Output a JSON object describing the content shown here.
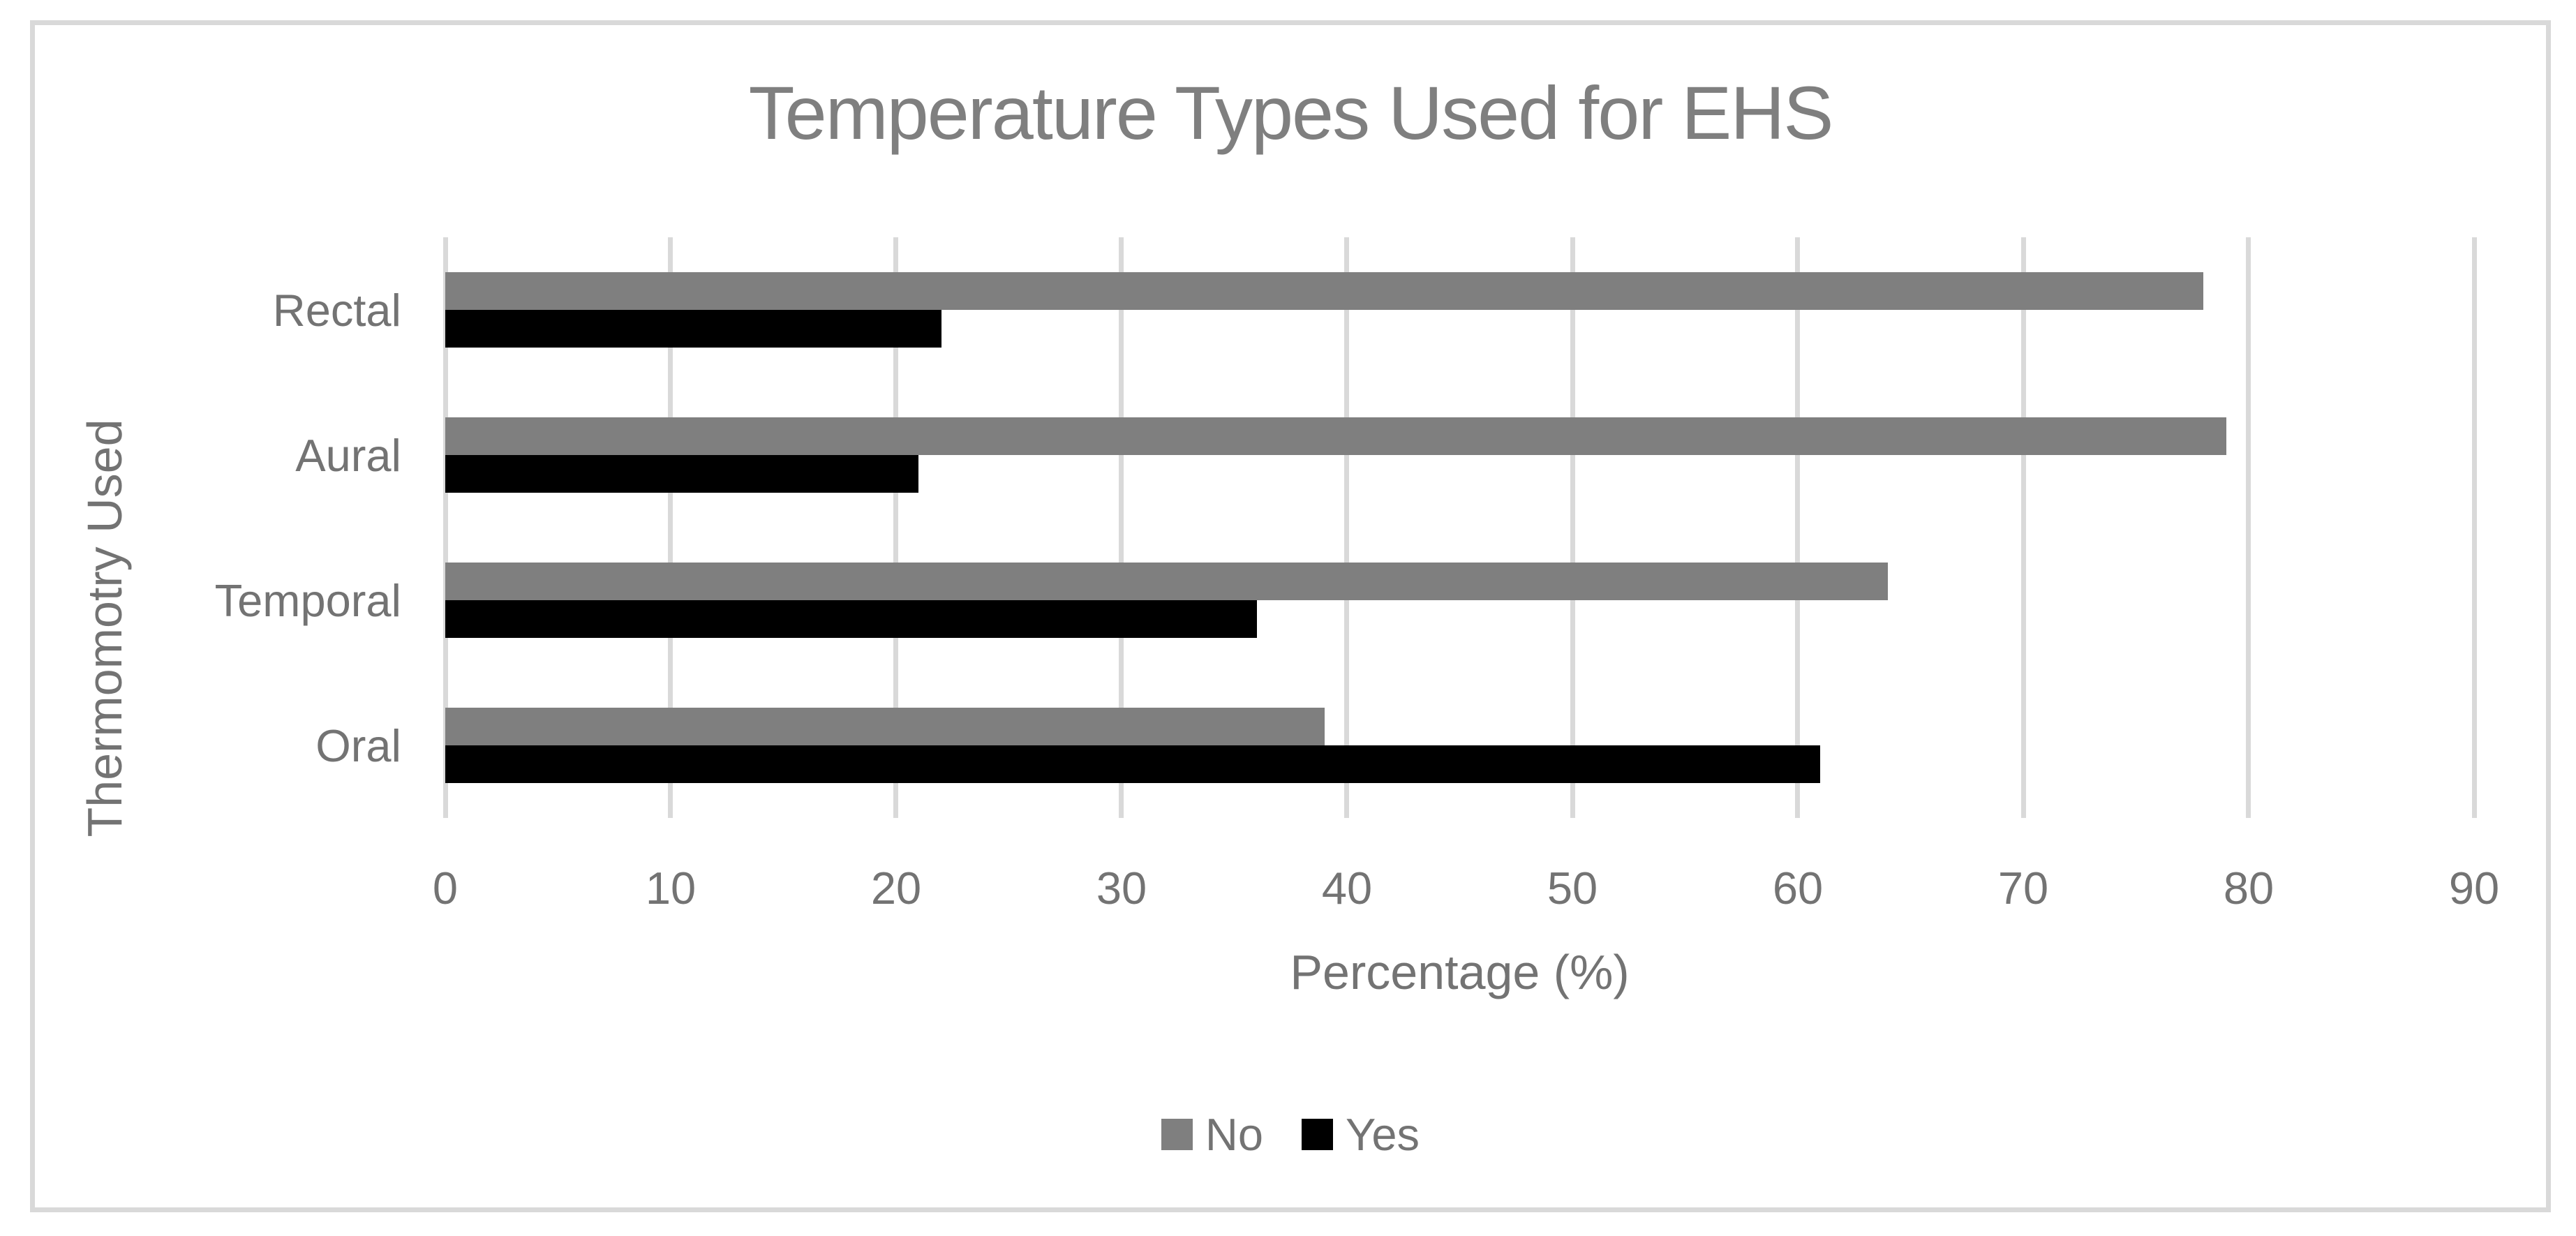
{
  "chart_data": {
    "type": "bar",
    "orientation": "horizontal",
    "title": "Temperature Types Used for EHS",
    "xlabel": "Percentage (%)",
    "ylabel": "Thermomotry Used",
    "categories": [
      "Rectal",
      "Aural",
      "Temporal",
      "Oral"
    ],
    "series": [
      {
        "name": "No",
        "color": "#7F7F7F",
        "values": [
          78,
          79,
          64,
          39
        ]
      },
      {
        "name": "Yes",
        "color": "#000000",
        "values": [
          22,
          21,
          36,
          61
        ]
      }
    ],
    "xlim": [
      0,
      90
    ],
    "xticks": [
      0,
      10,
      20,
      30,
      40,
      50,
      60,
      70,
      80,
      90
    ],
    "gridlines": "vertical",
    "legend_position": "bottom-center"
  },
  "colors": {
    "background": "#FFFFFF",
    "frame_border": "#D9D9D9",
    "gridline": "#D9D9D9",
    "title_text": "#7F7F7F",
    "axis_text": "#737373"
  }
}
